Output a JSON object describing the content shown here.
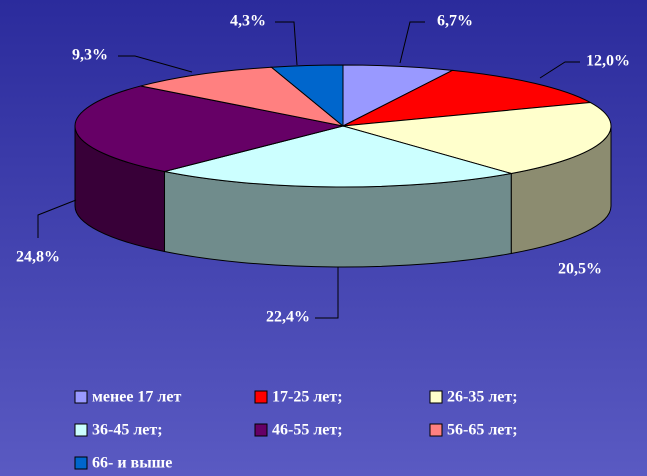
{
  "chart_data": {
    "type": "pie3d",
    "categories": [
      "менее 17 лет",
      "17-25 лет;",
      "26-35 лет;",
      "36-45 лет;",
      "46-55 лет;",
      "56-65 лет;",
      "66- и выше"
    ],
    "values": [
      6.7,
      12.0,
      20.5,
      22.4,
      24.8,
      9.3,
      4.3
    ],
    "value_labels": [
      "6,7%",
      "12,0%",
      "20,5%",
      "22,4%",
      "24,8%",
      "9,3%",
      "4,3%"
    ],
    "colors": [
      "#9999ff",
      "#ff0000",
      "#ffffcc",
      "#ccffff",
      "#660066",
      "#ff8080",
      "#0066cc"
    ]
  }
}
